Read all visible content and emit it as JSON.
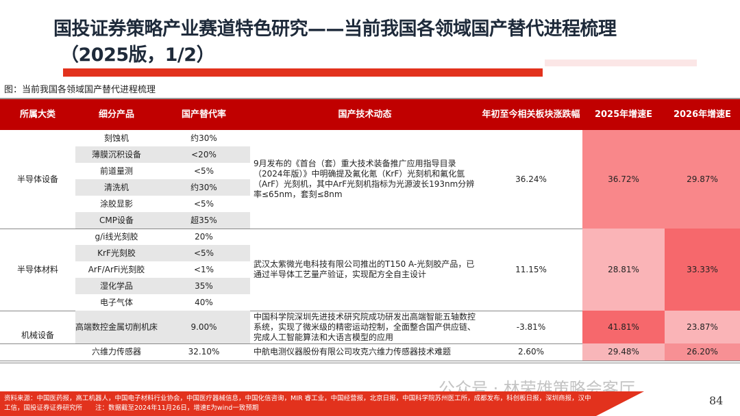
{
  "title": {
    "line1": "国投证券策略产业赛道特色研究——当前我国各领域国产替代进程梳理",
    "line2": "（2025版，1/2）"
  },
  "caption": "图：当前我国各领域国产替代进程梳理",
  "headers": [
    "所属大类",
    "细分产品",
    "国产替代率",
    "国产技术动态",
    "年初至今相关板块涨跌幅",
    "2025年增速E",
    "2026年增速E"
  ],
  "groups": [
    {
      "category": "半导体设备",
      "items": [
        [
          "刻蚀机",
          "约30%"
        ],
        [
          "薄膜沉积设备",
          "<20%"
        ],
        [
          "前道量测",
          "<5%"
        ],
        [
          "清洗机",
          "约30%"
        ],
        [
          "涂胶显影",
          "<5%"
        ],
        [
          "CMP设备",
          "超35%"
        ]
      ],
      "tech": "9月发布的《首台（套）重大技术装备推广应用指导目录（2024年版）》中明确提及氟化氪（KrF）光刻机和氟化氩（ArF）光刻机，其中ArF光刻机指标为光源波长193nm分辨率≤65nm，套刻≤8nm",
      "ytd": "36.24%",
      "g2025": "36.72%",
      "g2026": "29.87%",
      "c2025": "#f9878a",
      "c2026": "#f9878a"
    },
    {
      "category": "半导体材料",
      "items": [
        [
          "g/i线光刻胶",
          "20%"
        ],
        [
          "KrF光刻胶",
          "<5%"
        ],
        [
          "ArF/ArFi光刻胶",
          "<1%"
        ],
        [
          "湿化学品",
          "35%"
        ],
        [
          "电子气体",
          "40%"
        ]
      ],
      "tech": "武汉太紫微光电科技有限公司推出的T150 A-光刻胶产品，已通过半导体工艺量产验证，实现配方全自主设计",
      "ytd": "11.15%",
      "g2025": "28.81%",
      "g2026": "33.33%",
      "c2025": "#fab4b7",
      "c2026": "#f6686c"
    },
    {
      "category": "机械设备",
      "items": [
        [
          "高端数控金属切削机床",
          "9.00%"
        ]
      ],
      "tech": "中国科学院深圳先进技术研究院成功研发出高端智能五轴数控系统，实现了微米级的精密运动控制，全面整合国产供应链、完成人工智能算法和大语言模型的应用",
      "ytd": "-3.81%",
      "g2025": "41.81%",
      "g2026": "23.87%",
      "c2025": "#f6686c",
      "c2026": "#fab4b7",
      "sub": {
        "items": [
          [
            "六维力传感器",
            "32.10%"
          ]
        ],
        "tech": "中航电测仪器股份有限公司攻克六维力传感器技术难题",
        "ytd": "2.60%",
        "g2025": "29.48%",
        "g2026": "26.20%",
        "c2025": "#f8b6b9",
        "c2026": "#f79094"
      }
    }
  ],
  "footer": {
    "source": "资料来源：中国医药报，高工机器人，中国电子材料行业协会，中国医疗器械信息，中国化信咨询，MIR 睿工业，中国经营报，北京日报，中国科学院苏州医工所，成都发布，科创板日报，深圳商报，汉中工信，国投证券证券研究所　　注：数据截至2024年11月26日，增速E为wind一致预期",
    "watermark": "公众号 · 林荣雄策略会客厅",
    "page": "84"
  },
  "colors": {
    "header": "#c00000",
    "accent_bar": "#e2321d",
    "footer": "#e2321d"
  }
}
